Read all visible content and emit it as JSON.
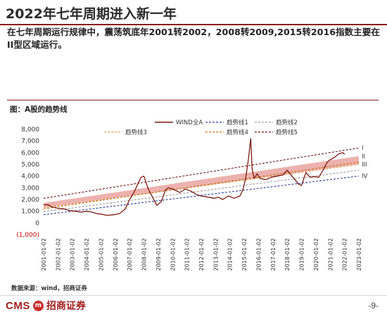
{
  "page": {
    "title": "2022年七年周期进入新一年",
    "body_text": "在七年周期运行规律中，震荡筑底年2001转2002，2008转2009,2015转2016指数主要在II型区域运行。",
    "source": "数据来源：wind，招商证券",
    "logo_text": "CMS",
    "logo_badge": "m",
    "logo_cn": "招商证券",
    "page_number": "-9-"
  },
  "colors": {
    "index_line": "#7a1a10",
    "trend1": "#2f3fa0",
    "trend2": "#9a9a9a",
    "trend3": "#e0a45a",
    "trend4": "#c8701a",
    "trend5": "#6e1414",
    "band_fill": "#e9a3a0",
    "rule": "#8b1a1a"
  },
  "chart_data": {
    "type": "line",
    "title": "图：A股的趋势线",
    "ylim": [
      -1000,
      8000
    ],
    "yticks": [
      -1000,
      0,
      1000,
      2000,
      3000,
      4000,
      5000,
      6000,
      7000,
      8000
    ],
    "ytick_labels": [
      "(1,000)",
      "0",
      "1,000",
      "2,000",
      "3,000",
      "4,000",
      "5,000",
      "6,000",
      "7,000",
      "8,000"
    ],
    "x_labels": [
      "2001-01-02",
      "2002-01-02",
      "2003-01-02",
      "2004-01-02",
      "2005-01-02",
      "2006-01-02",
      "2007-01-02",
      "2008-01-02",
      "2009-01-02",
      "2010-01-02",
      "2011-01-02",
      "2012-01-02",
      "2013-01-02",
      "2014-01-02",
      "2015-01-02",
      "2016-01-02",
      "2017-01-02",
      "2018-01-02",
      "2019-01-02",
      "2020-01-02",
      "2021-01-02",
      "2022-01-02",
      "2023-01-02"
    ],
    "legend": {
      "placement": "top",
      "entries": [
        "WIND全A",
        "趋势线1",
        "趋势线2",
        "趋势线3",
        "趋势线4",
        "趋势线5"
      ]
    },
    "series": [
      {
        "name": "WIND全A",
        "x": [
          2001.0,
          2001.3,
          2001.6,
          2002.0,
          2002.4,
          2002.8,
          2003.2,
          2003.6,
          2004.0,
          2004.3,
          2004.7,
          2005.0,
          2005.4,
          2005.9,
          2006.3,
          2006.7,
          2007.0,
          2007.3,
          2007.6,
          2007.8,
          2008.0,
          2008.3,
          2008.6,
          2008.9,
          2009.2,
          2009.5,
          2009.7,
          2010.0,
          2010.5,
          2010.9,
          2011.3,
          2011.7,
          2012.0,
          2012.5,
          2012.9,
          2013.2,
          2013.5,
          2013.9,
          2014.3,
          2014.7,
          2014.9,
          2015.1,
          2015.3,
          2015.45,
          2015.55,
          2015.7,
          2015.9,
          2016.1,
          2016.5,
          2016.9,
          2017.3,
          2017.7,
          2018.0,
          2018.4,
          2018.8,
          2019.0,
          2019.3,
          2019.6,
          2019.9,
          2020.2,
          2020.5,
          2020.8,
          2021.0,
          2021.3,
          2021.6,
          2021.9,
          2022.0
        ],
        "values": [
          1550,
          1550,
          1350,
          1250,
          1200,
          1050,
          1000,
          920,
          1000,
          950,
          800,
          750,
          650,
          700,
          800,
          1200,
          2000,
          2600,
          3400,
          3900,
          4000,
          2900,
          2200,
          1500,
          1800,
          2800,
          3000,
          2900,
          2600,
          2900,
          2700,
          2400,
          2300,
          2200,
          2100,
          2200,
          2000,
          2300,
          2100,
          2300,
          2800,
          3800,
          5500,
          7200,
          4600,
          3800,
          4200,
          3800,
          3700,
          3900,
          4000,
          4100,
          4500,
          3900,
          3300,
          3200,
          4300,
          3900,
          3950,
          3900,
          4500,
          5200,
          5400,
          5600,
          5900,
          6000,
          5850
        ]
      },
      {
        "name": "趋势线1",
        "x": [
          2001.0,
          2023.0
        ],
        "values": [
          700,
          4000
        ]
      },
      {
        "name": "趋势线2",
        "x": [
          2001.0,
          2023.0
        ],
        "values": [
          950,
          4500
        ]
      },
      {
        "name": "趋势线3",
        "x": [
          2001.0,
          2023.0
        ],
        "values": [
          1300,
          5000
        ]
      },
      {
        "name": "趋势线4",
        "x": [
          2001.0,
          2023.0
        ],
        "values": [
          1200,
          5200
        ]
      },
      {
        "name": "趋势线5",
        "x": [
          2001.0,
          2023.0
        ],
        "values": [
          2100,
          6400
        ]
      }
    ],
    "band": {
      "x": [
        2001.0,
        2023.0
      ],
      "lower": [
        1300,
        5000
      ],
      "upper": [
        1700,
        5700
      ]
    },
    "annotations": [
      "I",
      "II",
      "III",
      "IV"
    ],
    "annotation_values": [
      6400,
      5700,
      5000,
      4000
    ]
  }
}
